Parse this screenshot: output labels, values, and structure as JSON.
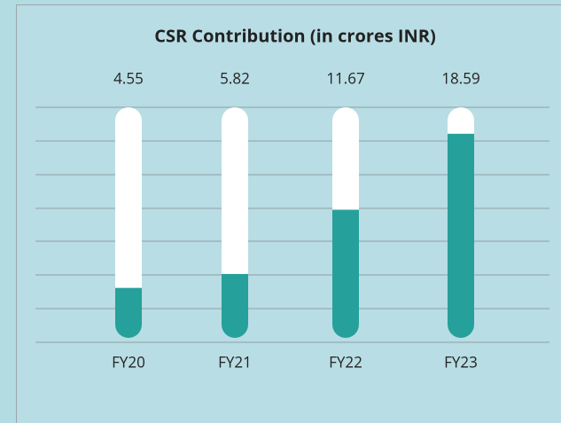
{
  "chart_data": {
    "type": "bar",
    "title": "CSR Contribution (in crores INR)",
    "categories": [
      "FY20",
      "FY21",
      "FY22",
      "FY23"
    ],
    "values": [
      4.55,
      5.82,
      11.67,
      18.59
    ],
    "color": "#26a09a",
    "ylim": [
      0,
      21
    ]
  }
}
